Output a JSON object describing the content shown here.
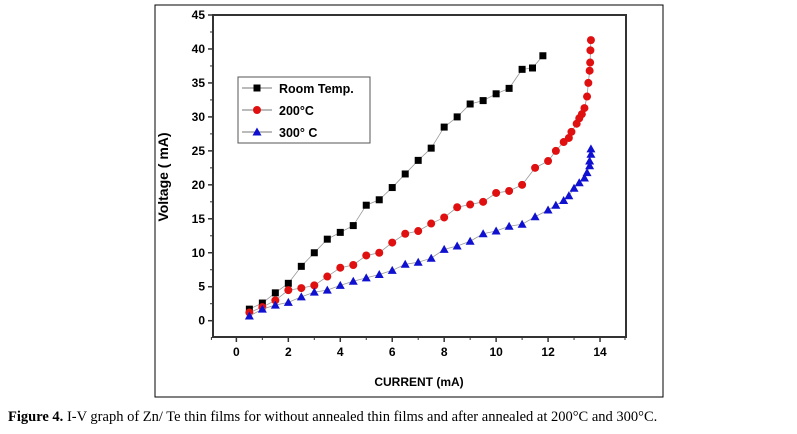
{
  "chart_data": {
    "type": "scatter",
    "title": "",
    "xlabel": "CURRENT (mA)",
    "ylabel": "Voltage ( mA)",
    "xlim": [
      -0.9,
      15
    ],
    "ylim": [
      -2.4,
      45
    ],
    "xticks": [
      0,
      2,
      4,
      6,
      8,
      10,
      12,
      14
    ],
    "yticks": [
      0,
      5,
      10,
      15,
      20,
      25,
      30,
      35,
      40,
      45
    ],
    "grid": false,
    "legend_position": "top-left",
    "series": [
      {
        "name": "Room Temp.",
        "color": "#000000",
        "marker": "square",
        "x": [
          0.5,
          1,
          1.5,
          2,
          2.5,
          3,
          3.5,
          4,
          4.5,
          5,
          5.5,
          6,
          6.5,
          7,
          7.5,
          8,
          8.5,
          9,
          9.5,
          10,
          10.5,
          11,
          11.4,
          11.8
        ],
        "y": [
          1.7,
          2.6,
          4.1,
          5.5,
          8,
          10,
          12,
          13,
          14,
          17,
          17.8,
          19.6,
          21.6,
          23.6,
          25.4,
          28.5,
          30,
          31.9,
          32.4,
          33.4,
          34.2,
          37,
          37.2,
          39
        ]
      },
      {
        "name": "200°C",
        "color": "#e01010",
        "marker": "circle",
        "x": [
          0.5,
          1,
          1.5,
          2,
          2.5,
          3,
          3.5,
          4,
          4.5,
          5,
          5.5,
          6,
          6.5,
          7,
          7.5,
          8,
          8.5,
          9,
          9.5,
          10,
          10.5,
          11,
          11.5,
          12,
          12.3,
          12.6,
          12.8,
          12.9,
          13.1,
          13.2,
          13.3,
          13.4,
          13.5,
          13.55,
          13.6,
          13.62,
          13.63,
          13.65
        ],
        "y": [
          1.2,
          2,
          3,
          4.5,
          4.8,
          5.2,
          6.5,
          7.8,
          8.2,
          9.6,
          10,
          11.5,
          12.8,
          13.2,
          14.3,
          15.2,
          16.7,
          17.1,
          17.5,
          18.8,
          19.1,
          20,
          22.5,
          23.5,
          25,
          26.3,
          26.9,
          27.8,
          29,
          29.8,
          30.4,
          31.3,
          33,
          35,
          36.8,
          38,
          39.8,
          41.3
        ]
      },
      {
        "name": "300° C",
        "color": "#1010d0",
        "marker": "triangle",
        "x": [
          0.5,
          1,
          1.5,
          2,
          2.5,
          3,
          3.5,
          4,
          4.5,
          5,
          5.5,
          6,
          6.5,
          7,
          7.5,
          8,
          8.5,
          9,
          9.5,
          10,
          10.5,
          11,
          11.5,
          12,
          12.3,
          12.6,
          12.8,
          13,
          13.2,
          13.4,
          13.5,
          13.6,
          13.6,
          13.65,
          13.65
        ],
        "y": [
          0.7,
          1.7,
          2.3,
          2.7,
          3.5,
          4.2,
          4.5,
          5.2,
          5.8,
          6.3,
          6.8,
          7.4,
          8.3,
          8.6,
          9.2,
          10.5,
          11,
          11.7,
          12.8,
          13.2,
          13.9,
          14.2,
          15.3,
          16.3,
          17,
          17.7,
          18.4,
          19.5,
          20.3,
          21,
          21.8,
          22.8,
          23.5,
          24.5,
          25.3
        ]
      }
    ]
  },
  "caption": {
    "label": "Figure 4.",
    "text": " I-V graph of Zn/ Te thin films for without annealed thin films and after annealed at 200°C and 300°C."
  }
}
